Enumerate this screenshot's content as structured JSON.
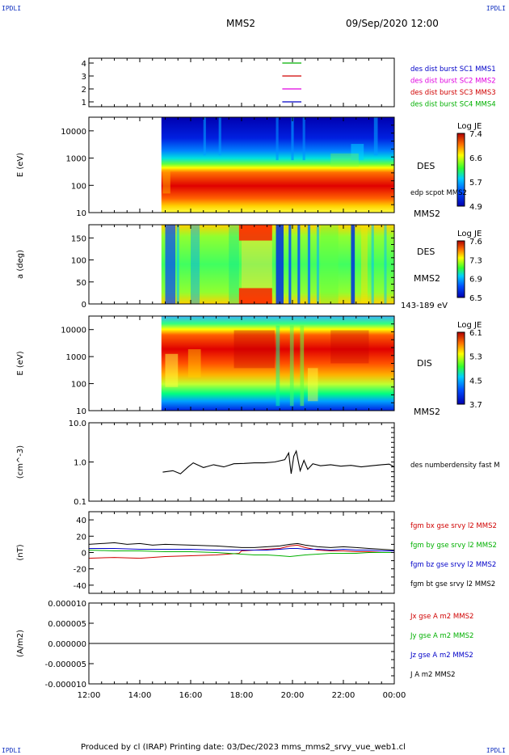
{
  "corner_label": "IPDLI",
  "header": {
    "spacecraft": "MMS2",
    "datetime": "09/Sep/2020 12:00"
  },
  "footer": {
    "text": "Produced by cl (IRAP)   Printing date: 03/Dec/2023   mms_mms2_srvy_vue_web1.cl"
  },
  "time_axis": {
    "ticks": [
      "12:00",
      "14:00",
      "16:00",
      "18:00",
      "20:00",
      "22:00",
      "00:00"
    ]
  },
  "colors": {
    "blue": "#0000c8",
    "magenta": "#e000e0",
    "red": "#d00000",
    "green": "#00b000",
    "black": "#000000"
  },
  "chart_data": [
    {
      "type": "line",
      "panel": "spacecraft-availability",
      "y_ticks": [
        "4",
        "3",
        "2",
        "1"
      ],
      "series": [
        {
          "name": "des dist burst SC1 MMS1",
          "color": "#0000c8",
          "level": 1
        },
        {
          "name": "des dist burst SC2 MMS2",
          "color": "#e000e0",
          "level": 2
        },
        {
          "name": "des dist burst SC3 MMS3",
          "color": "#d00000",
          "level": 3
        },
        {
          "name": "des dist burst SC4 MMS4",
          "color": "#00b000",
          "level": 4
        }
      ],
      "segment_hours": [
        19.6,
        20.35
      ]
    },
    {
      "type": "heatmap",
      "panel": "des-energy-spectrogram",
      "ylabel": "E (eV)",
      "y_ticks": [
        "10000",
        "1000",
        "100",
        "10"
      ],
      "labels": [
        "DES",
        "edp scpot MMS2",
        "MMS2"
      ],
      "colorbar": {
        "title": "Log JE",
        "ticks": [
          "7.4",
          "6.6",
          "5.7",
          "4.9"
        ]
      },
      "data_start_hour": 14.85
    },
    {
      "type": "heatmap",
      "panel": "des-pitch-angle",
      "ylabel": "a (deg)",
      "y_ticks": [
        "150",
        "100",
        "50",
        "0"
      ],
      "labels": [
        "DES",
        "MMS2",
        "143-189 eV"
      ],
      "colorbar": {
        "title": "Log JE",
        "ticks": [
          "7.6",
          "7.3",
          "6.9",
          "6.5"
        ]
      },
      "data_start_hour": 14.85
    },
    {
      "type": "heatmap",
      "panel": "dis-energy-spectrogram",
      "ylabel": "E (eV)",
      "y_ticks": [
        "10000",
        "1000",
        "100",
        "10"
      ],
      "labels": [
        "DIS",
        "MMS2"
      ],
      "colorbar": {
        "title": "Log JE",
        "ticks": [
          "6.1",
          "5.3",
          "4.5",
          "3.7"
        ]
      },
      "data_start_hour": 14.85
    },
    {
      "type": "line",
      "panel": "number-density",
      "ylabel": "(cm^-3)",
      "y_ticks": [
        "10.0",
        "1.0",
        "0.1"
      ],
      "ylim": [
        0.1,
        10
      ],
      "yscale": "log",
      "series": [
        {
          "name": "des numberdensity fast M",
          "color": "#000000",
          "x": [
            14.9,
            15.3,
            15.6,
            15.9,
            16.1,
            16.5,
            16.9,
            17.3,
            17.7,
            18.1,
            18.5,
            18.9,
            19.3,
            19.7,
            19.85,
            19.95,
            20.05,
            20.15,
            20.3,
            20.45,
            20.6,
            20.8,
            21.1,
            21.5,
            21.9,
            22.3,
            22.7,
            23.1,
            23.5,
            23.8,
            24.0
          ],
          "y": [
            0.55,
            0.6,
            0.5,
            0.75,
            0.95,
            0.72,
            0.85,
            0.75,
            0.9,
            0.92,
            0.95,
            0.95,
            1.0,
            1.15,
            1.7,
            0.5,
            1.4,
            1.9,
            0.6,
            1.1,
            0.65,
            0.9,
            0.8,
            0.85,
            0.78,
            0.82,
            0.75,
            0.8,
            0.85,
            0.88,
            0.75
          ]
        }
      ]
    },
    {
      "type": "line",
      "panel": "magnetic-field",
      "ylabel": "(nT)",
      "y_ticks": [
        "40",
        "20",
        "0",
        "-20",
        "-40"
      ],
      "ylim": [
        -50,
        50
      ],
      "series": [
        {
          "name": "fgm bx gse srvy l2 MMS2",
          "color": "#d00000",
          "x": [
            12.0,
            13.0,
            14.0,
            15.0,
            16.0,
            17.0,
            17.9,
            18.0,
            18.5,
            19.0,
            19.5,
            19.9,
            20.2,
            20.5,
            21.0,
            21.5,
            22.0,
            22.5,
            23.0,
            23.5,
            24.0
          ],
          "y": [
            -7,
            -6,
            -7,
            -5,
            -4,
            -3,
            -1,
            2,
            3,
            4,
            5,
            8,
            9,
            6,
            3,
            2,
            2,
            1,
            1,
            0,
            0
          ]
        },
        {
          "name": "fgm by gse srvy l2 MMS2",
          "color": "#00b000",
          "x": [
            12.0,
            13.0,
            14.0,
            15.0,
            16.0,
            17.0,
            18.0,
            18.5,
            19.0,
            19.5,
            19.9,
            20.2,
            20.5,
            21.0,
            21.5,
            22.0,
            22.5,
            23.0,
            23.5,
            24.0
          ],
          "y": [
            3,
            2,
            2,
            1,
            1,
            0,
            -2,
            -3,
            -3,
            -4,
            -5,
            -4,
            -3,
            -2,
            -1,
            -1,
            -1,
            0,
            0,
            0
          ]
        },
        {
          "name": "fgm bz gse srvy l2 MMS2",
          "color": "#0000c8",
          "x": [
            12.0,
            13.0,
            14.0,
            15.0,
            16.0,
            17.0,
            18.0,
            18.5,
            19.0,
            19.5,
            19.9,
            20.2,
            20.5,
            21.0,
            21.5,
            22.0,
            22.5,
            23.0,
            23.5,
            24.0
          ],
          "y": [
            5,
            5,
            4,
            4,
            4,
            3,
            3,
            3,
            3,
            4,
            5,
            5,
            4,
            4,
            3,
            4,
            3,
            3,
            2,
            2
          ]
        },
        {
          "name": "fgm bt gse srvy l2 MMS2",
          "color": "#000000",
          "x": [
            12.0,
            12.5,
            13.0,
            13.5,
            14.0,
            14.5,
            15.0,
            16.0,
            17.0,
            18.0,
            18.5,
            19.0,
            19.5,
            19.9,
            20.2,
            20.5,
            21.0,
            21.5,
            22.0,
            22.5,
            23.0,
            23.5,
            24.0
          ],
          "y": [
            10,
            11,
            12,
            10,
            11,
            9,
            10,
            9,
            8,
            6,
            6,
            7,
            8,
            10,
            11,
            9,
            7,
            6,
            7,
            6,
            5,
            4,
            3
          ]
        }
      ]
    },
    {
      "type": "line",
      "panel": "current-density",
      "ylabel": "(A/m2)",
      "y_ticks": [
        "0.000010",
        "0.000005",
        "0.000000",
        "-0.000005",
        "-0.000010"
      ],
      "ylim": [
        -1e-05,
        1e-05
      ],
      "series": [
        {
          "name": "Jx gse A m2 MMS2",
          "color": "#d00000",
          "x": [
            12.0,
            24.0
          ],
          "y": [
            0,
            0
          ]
        },
        {
          "name": "Jy gse A m2 MMS2",
          "color": "#00b000",
          "x": [
            12.0,
            24.0
          ],
          "y": [
            0,
            0
          ]
        },
        {
          "name": "Jz gse A m2 MMS2",
          "color": "#0000c8",
          "x": [
            12.0,
            24.0
          ],
          "y": [
            0,
            0
          ]
        },
        {
          "name": "J A m2 MMS2",
          "color": "#000000",
          "x": [
            12.0,
            24.0
          ],
          "y": [
            0,
            0
          ]
        }
      ]
    }
  ]
}
